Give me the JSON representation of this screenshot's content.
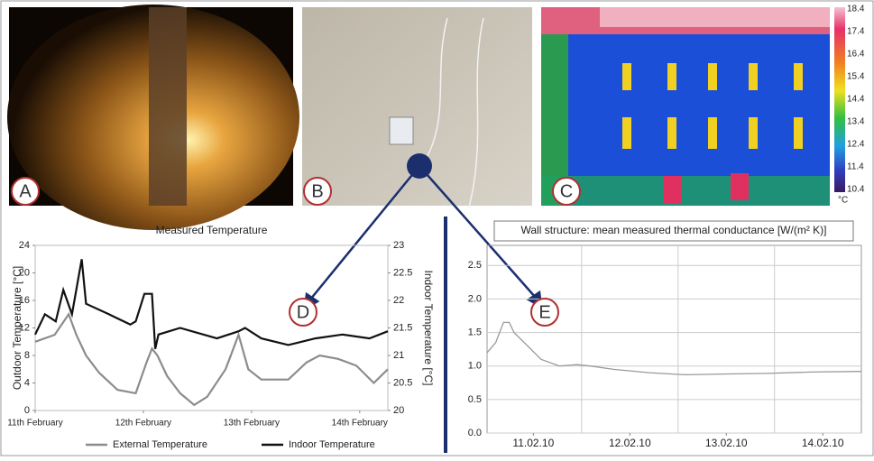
{
  "panels": [
    {
      "label": "A"
    },
    {
      "label": "B"
    },
    {
      "label": "C",
      "scale_labels": [
        "18.4",
        "17.4",
        "16.4",
        "15.4",
        "14.4",
        "13.4",
        "12.4",
        "11.4",
        "10.4"
      ],
      "scale_unit": "°C"
    }
  ],
  "chart_data": [
    {
      "type": "line",
      "panel_label": "D",
      "title": "Measured Temperature",
      "ylabel": "Outdoor Temperature [°C]",
      "y2label": "Indoor Temperature [°C]",
      "xlim": [
        11,
        14.26
      ],
      "xticks": [
        {
          "value": 11,
          "label": "11th February"
        },
        {
          "value": 12,
          "label": "12th February"
        },
        {
          "value": 13,
          "label": "13th February"
        },
        {
          "value": 14,
          "label": "14th February"
        }
      ],
      "ylim": [
        0,
        24
      ],
      "yticks": [
        0,
        4,
        8,
        12,
        16,
        20,
        24
      ],
      "y2lim": [
        20,
        23
      ],
      "y2ticks": [
        20,
        20.5,
        21,
        21.5,
        22,
        22.5,
        23
      ],
      "grid": false,
      "legend": "bottom",
      "series": [
        {
          "name": "External Temperature",
          "color": "#8c8c8c",
          "x": [
            11.0,
            11.18,
            11.31,
            11.38,
            11.47,
            11.59,
            11.76,
            11.93,
            12.03,
            12.08,
            12.13,
            12.22,
            12.34,
            12.47,
            12.59,
            12.76,
            12.88,
            12.97,
            13.09,
            13.34,
            13.51,
            13.63,
            13.8,
            13.97,
            14.13,
            14.26
          ],
          "values": [
            10,
            11,
            14,
            11,
            8,
            5.5,
            3,
            2.5,
            7,
            9,
            8,
            5,
            2.5,
            0.8,
            2,
            6,
            11,
            6,
            4.5,
            4.5,
            7,
            8,
            7.5,
            6.5,
            4,
            6
          ]
        },
        {
          "name": "Indoor Temperature",
          "color": "#111111",
          "axis": "y2",
          "x": [
            11.0,
            11.09,
            11.19,
            11.26,
            11.34,
            11.43,
            11.47,
            11.68,
            11.88,
            11.93,
            12.01,
            12.08,
            12.11,
            12.14,
            12.34,
            12.68,
            12.88,
            12.94,
            13.09,
            13.34,
            13.59,
            13.84,
            14.09,
            14.26
          ],
          "values": [
            21.38,
            21.75,
            21.62,
            22.19,
            21.75,
            22.75,
            21.94,
            21.75,
            21.56,
            21.62,
            22.12,
            22.12,
            21.12,
            21.38,
            21.5,
            21.31,
            21.44,
            21.5,
            21.31,
            21.19,
            21.31,
            21.38,
            21.31,
            21.44
          ]
        }
      ]
    },
    {
      "type": "line",
      "panel_label": "E",
      "title": "Wall structure: mean measured thermal conductance [W/(m² K)]",
      "xlim": [
        11.02,
        14.9
      ],
      "xticks": [
        {
          "value": 11.5,
          "label": "11.02.10"
        },
        {
          "value": 12.5,
          "label": "12.02.10"
        },
        {
          "value": 13.5,
          "label": "13.02.10"
        },
        {
          "value": 14.5,
          "label": "14.02.10"
        }
      ],
      "xgrid_lines": [
        12,
        13,
        14
      ],
      "ylim": [
        0,
        2.8
      ],
      "yticks": [
        {
          "value": 0,
          "label": "0.0"
        },
        0.5,
        {
          "value": 1,
          "label": "1.0"
        },
        1.5,
        {
          "value": 2,
          "label": "2.0"
        },
        2.5
      ],
      "grid": true,
      "series": [
        {
          "color": "#9a9a9a",
          "x": [
            11.02,
            11.11,
            11.19,
            11.25,
            11.3,
            11.44,
            11.58,
            11.77,
            11.95,
            12.09,
            12.33,
            12.7,
            13.07,
            13.45,
            13.92,
            14.38,
            14.9
          ],
          "values": [
            1.2,
            1.35,
            1.65,
            1.65,
            1.5,
            1.3,
            1.1,
            1.0,
            1.02,
            1.0,
            0.95,
            0.9,
            0.87,
            0.88,
            0.89,
            0.91,
            0.92
          ]
        }
      ]
    }
  ]
}
